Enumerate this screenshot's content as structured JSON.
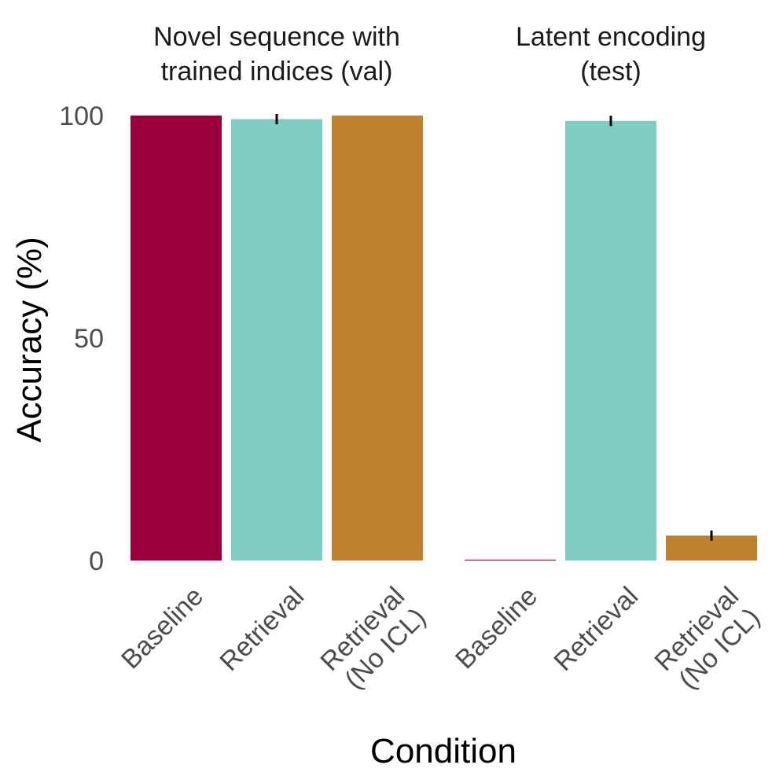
{
  "chart_data": {
    "type": "bar",
    "xlabel": "Condition",
    "ylabel": "Accuracy (%)",
    "ylim": [
      0,
      100
    ],
    "yticks": [
      0,
      50,
      100
    ],
    "grid": false,
    "panels": [
      {
        "title_lines": [
          "Novel sequence with",
          "trained indices (val)"
        ],
        "categories": [
          [
            "Baseline"
          ],
          [
            "Retrieval"
          ],
          [
            "Retrieval",
            "(No ICL)"
          ]
        ],
        "values": [
          100,
          99.2,
          100
        ],
        "errors": [
          0,
          0.8,
          0
        ],
        "colors": [
          "#9B003D",
          "#80CDC1",
          "#BF812D"
        ]
      },
      {
        "title_lines": [
          "Latent encoding",
          "(test)"
        ],
        "categories": [
          [
            "Baseline"
          ],
          [
            "Retrieval"
          ],
          [
            "Retrieval",
            "(No ICL)"
          ]
        ],
        "values": [
          0.2,
          98.8,
          5.6
        ],
        "errors": [
          0,
          0.8,
          0.8
        ],
        "colors": [
          "#9B003D",
          "#80CDC1",
          "#BF812D"
        ]
      }
    ]
  }
}
